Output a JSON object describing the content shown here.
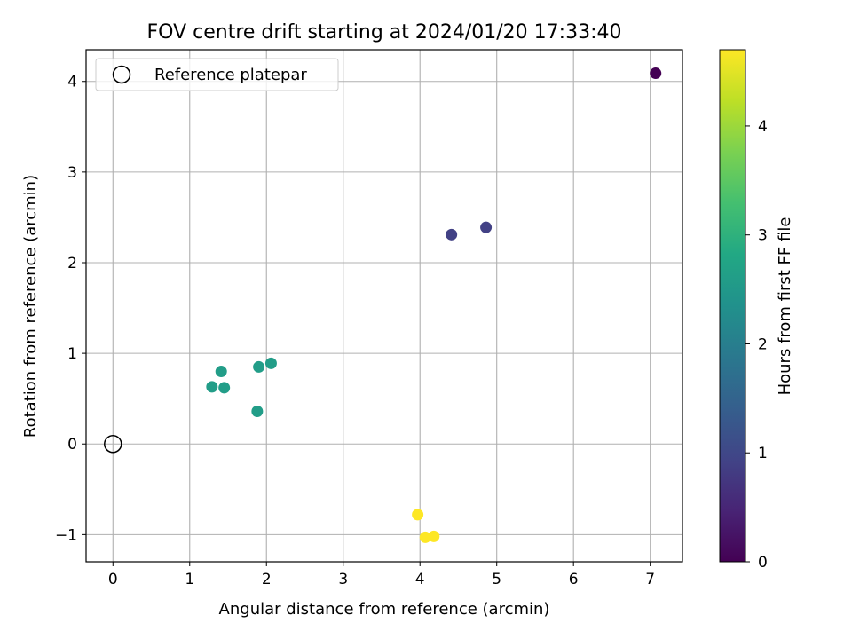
{
  "chart_data": {
    "type": "scatter",
    "title": "FOV centre drift starting at 2024/01/20 17:33:40",
    "xlabel": "Angular distance from reference (arcmin)",
    "ylabel": "Rotation from reference (arcmin)",
    "xlim": [
      -0.35,
      7.42
    ],
    "ylim": [
      -1.3,
      4.35
    ],
    "x_ticks": [
      0,
      1,
      2,
      3,
      4,
      5,
      6,
      7
    ],
    "y_ticks": [
      -1,
      0,
      1,
      2,
      3,
      4
    ],
    "x_tick_labels": [
      "0",
      "1",
      "2",
      "3",
      "4",
      "5",
      "6",
      "7"
    ],
    "y_tick_labels": [
      "−1",
      "0",
      "1",
      "2",
      "3",
      "4"
    ],
    "grid": true,
    "legend": {
      "placement": "top-left",
      "entries": [
        {
          "label": "Reference platepar",
          "marker": "hollow-circle",
          "color": "#000000"
        }
      ]
    },
    "reference_point": {
      "x": 0,
      "y": 0
    },
    "colorbar": {
      "label": "Hours from first FF file",
      "colormap": "viridis",
      "range": [
        0,
        4.7
      ],
      "ticks": [
        0,
        1,
        2,
        3,
        4
      ],
      "tick_labels": [
        "0",
        "1",
        "2",
        "3",
        "4"
      ]
    },
    "points": [
      {
        "x": 7.07,
        "y": 4.09,
        "hours": 0.0
      },
      {
        "x": 4.41,
        "y": 2.31,
        "hours": 0.9
      },
      {
        "x": 4.86,
        "y": 2.39,
        "hours": 0.9
      },
      {
        "x": 1.29,
        "y": 0.63,
        "hours": 2.6
      },
      {
        "x": 1.41,
        "y": 0.8,
        "hours": 2.6
      },
      {
        "x": 1.45,
        "y": 0.62,
        "hours": 2.6
      },
      {
        "x": 1.9,
        "y": 0.85,
        "hours": 2.6
      },
      {
        "x": 2.06,
        "y": 0.89,
        "hours": 2.6
      },
      {
        "x": 1.88,
        "y": 0.36,
        "hours": 2.6
      },
      {
        "x": 3.97,
        "y": -0.78,
        "hours": 4.7
      },
      {
        "x": 4.07,
        "y": -1.03,
        "hours": 4.7
      },
      {
        "x": 4.18,
        "y": -1.02,
        "hours": 4.7
      }
    ]
  }
}
